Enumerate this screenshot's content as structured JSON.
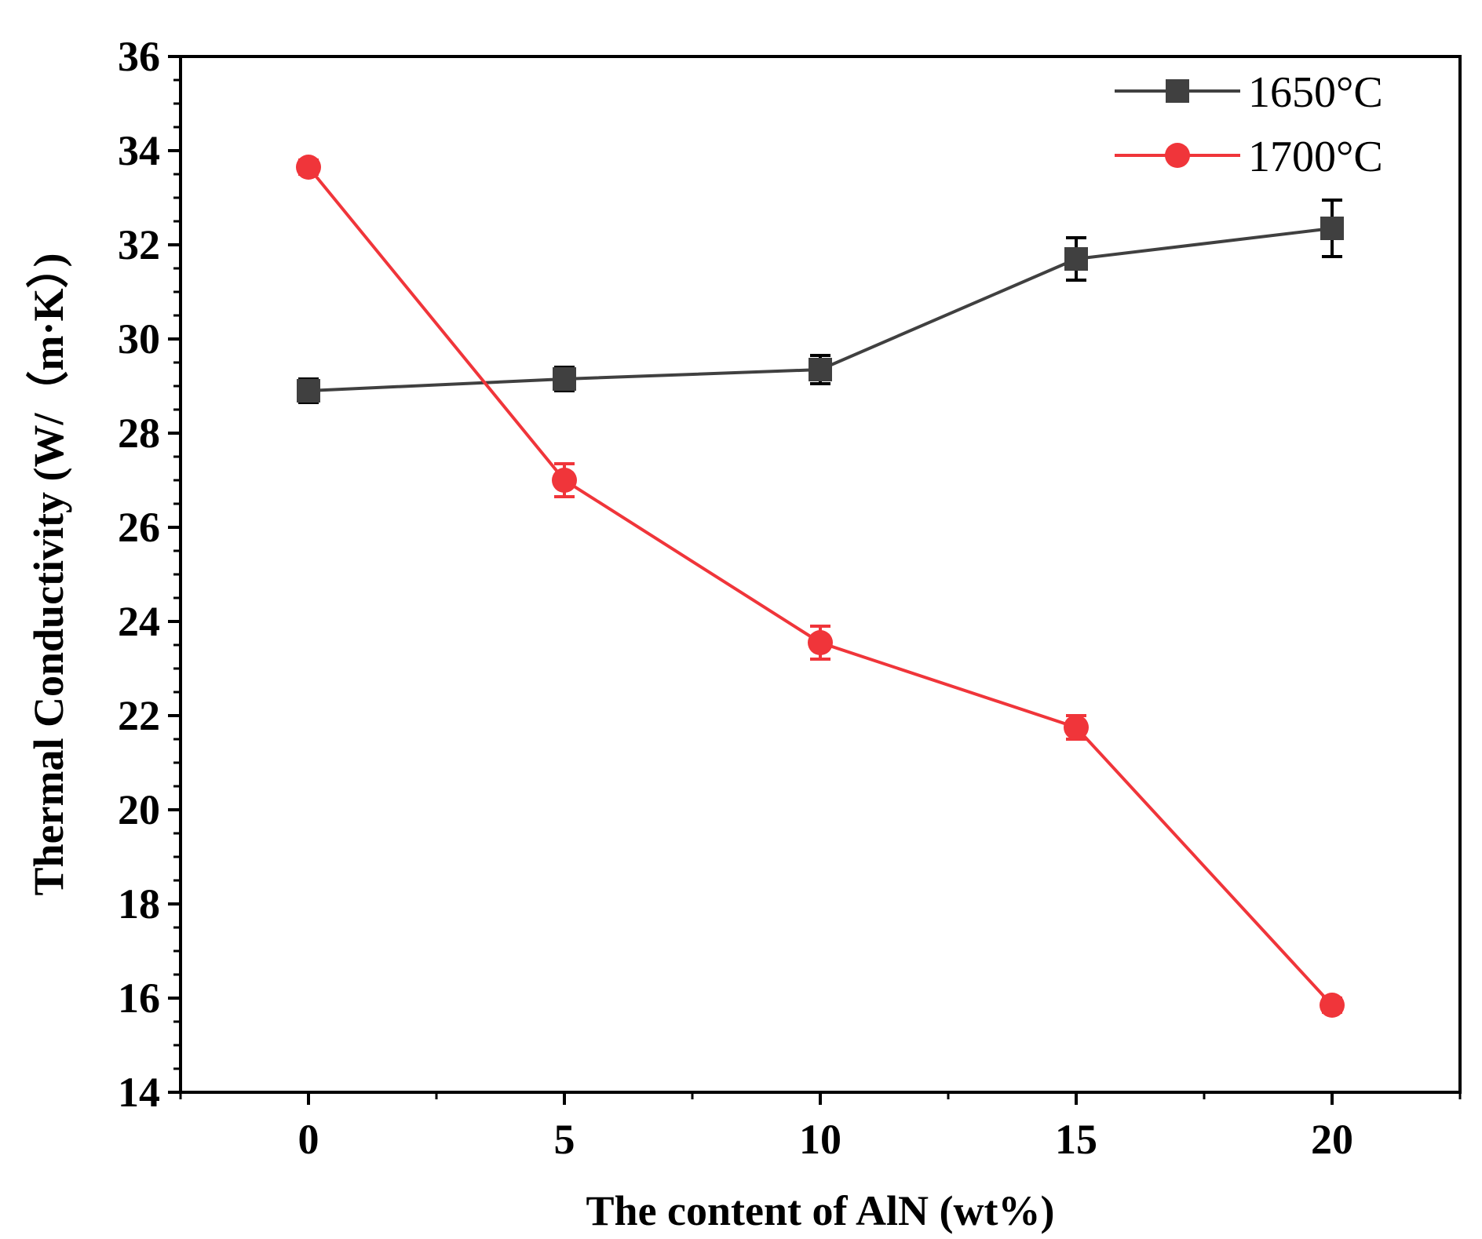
{
  "chart_data": {
    "type": "line",
    "title": "",
    "xlabel": "The content of AlN (wt%)",
    "ylabel": "Thermal Conductivity (W/（m·K）)",
    "xlim": [
      -2.5,
      22.5
    ],
    "ylim": [
      14,
      36
    ],
    "xticks": [
      0,
      5,
      10,
      15,
      20
    ],
    "yticks": [
      14,
      16,
      18,
      20,
      22,
      24,
      26,
      28,
      30,
      32,
      34,
      36
    ],
    "x": [
      0,
      5,
      10,
      15,
      20
    ],
    "series": [
      {
        "name": "1650°C",
        "color": "#404040",
        "marker": "square",
        "values": [
          28.9,
          29.15,
          29.35,
          31.7,
          32.35
        ],
        "errors": [
          0.25,
          0.25,
          0.3,
          0.45,
          0.6
        ]
      },
      {
        "name": "1700°C",
        "color": "#f0353a",
        "marker": "circle",
        "values": [
          33.65,
          27.0,
          23.55,
          21.75,
          15.85
        ],
        "errors": [
          0.15,
          0.35,
          0.35,
          0.25,
          0.15
        ]
      }
    ],
    "legend_position": "top-right",
    "grid": false
  }
}
